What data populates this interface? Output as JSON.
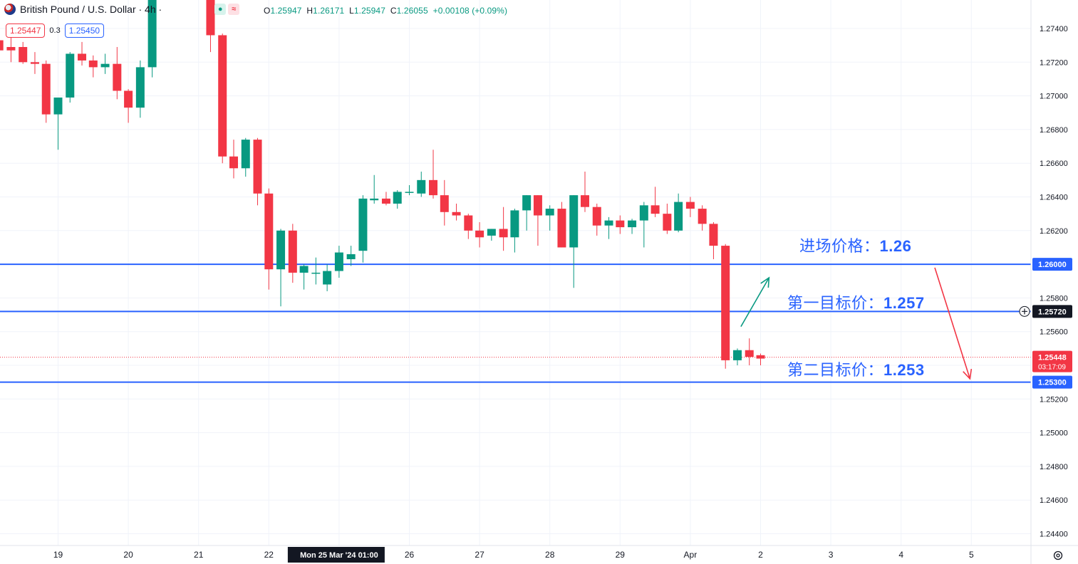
{
  "header": {
    "symbol_title": "British Pound / U.S. Dollar · 4h ·",
    "ohlc": {
      "open_label": "O",
      "open": "1.25947",
      "high_label": "H",
      "high": "1.26171",
      "low_label": "L",
      "low": "1.25947",
      "close_label": "C",
      "close": "1.26055",
      "change": "+0.00108 (+0.09%)"
    },
    "sell_price": "1.25447",
    "spread": "0.3",
    "buy_price": "1.25450"
  },
  "annotations": {
    "entry": {
      "label": "进场价格：",
      "value": "1.26"
    },
    "target1": {
      "label": "第一目标价：",
      "value": "1.257"
    },
    "target2": {
      "label": "第二目标价：",
      "value": "1.253"
    }
  },
  "colors": {
    "up": "#089981",
    "down": "#f23645",
    "line": "#2962ff",
    "grid": "#f0f3fa",
    "text": "#131722"
  },
  "chart_data": {
    "type": "candlestick",
    "title": "British Pound / U.S. Dollar",
    "timeframe": "4h",
    "ylim": [
      1.2435,
      1.2755
    ],
    "y_ticks": [
      "1.27400",
      "1.27200",
      "1.27000",
      "1.26800",
      "1.26600",
      "1.26400",
      "1.26200",
      "1.26000",
      "1.25800",
      "1.25600",
      "1.25400",
      "1.25200",
      "1.25000",
      "1.24800",
      "1.24600",
      "1.24400"
    ],
    "x_labels": [
      "19",
      "20",
      "21",
      "22",
      "Mon 25 Mar '24  01:00",
      "26",
      "27",
      "28",
      "29",
      "Apr",
      "2",
      "3",
      "4",
      "5"
    ],
    "x_label_days": [
      1,
      2,
      3,
      4,
      5,
      6,
      7,
      8,
      9,
      10,
      11,
      12,
      13,
      14
    ],
    "horizontal_lines": [
      {
        "price": 1.26,
        "label": "1.26000",
        "highlight": false
      },
      {
        "price": 1.2572,
        "label": "1.25720",
        "highlight": true
      },
      {
        "price": 1.253,
        "label": "1.25300",
        "highlight": false
      }
    ],
    "current_price": {
      "price": 1.25448,
      "label": "1.25448",
      "countdown": "03:17:09"
    },
    "arrows": [
      {
        "from": {
          "day": 10.72,
          "price": 1.2563
        },
        "to": {
          "day": 11.12,
          "price": 1.2592
        },
        "color": "#089981"
      },
      {
        "from": {
          "day": 13.48,
          "price": 1.2598
        },
        "to": {
          "day": 13.98,
          "price": 1.2532
        },
        "color": "#f23645"
      }
    ],
    "candles": [
      {
        "day": -0.18,
        "o": 1.2735,
        "h": 1.2755,
        "l": 1.2732,
        "c": 1.2752
      },
      {
        "day": -0.01,
        "o": 1.2732,
        "h": 1.274,
        "l": 1.2725,
        "c": 1.2728
      },
      {
        "day": 0.16,
        "o": 1.2733,
        "h": 1.274,
        "l": 1.2723,
        "c": 1.2727
      },
      {
        "day": 0.33,
        "o": 1.2729,
        "h": 1.2735,
        "l": 1.272,
        "c": 1.2727
      },
      {
        "day": 0.5,
        "o": 1.2729,
        "h": 1.2732,
        "l": 1.2719,
        "c": 1.272
      },
      {
        "day": 0.67,
        "o": 1.272,
        "h": 1.2726,
        "l": 1.2713,
        "c": 1.2719
      },
      {
        "day": 0.83,
        "o": 1.2719,
        "h": 1.2721,
        "l": 1.2684,
        "c": 1.2689
      },
      {
        "day": 1.0,
        "o": 1.2689,
        "h": 1.2699,
        "l": 1.2668,
        "c": 1.2699
      },
      {
        "day": 1.17,
        "o": 1.2699,
        "h": 1.2726,
        "l": 1.2696,
        "c": 1.2725
      },
      {
        "day": 1.34,
        "o": 1.2725,
        "h": 1.2732,
        "l": 1.2718,
        "c": 1.2721
      },
      {
        "day": 1.5,
        "o": 1.2721,
        "h": 1.2724,
        "l": 1.2711,
        "c": 1.2717
      },
      {
        "day": 1.67,
        "o": 1.2717,
        "h": 1.2725,
        "l": 1.2713,
        "c": 1.2719
      },
      {
        "day": 1.84,
        "o": 1.2719,
        "h": 1.2729,
        "l": 1.2698,
        "c": 1.2703
      },
      {
        "day": 2.0,
        "o": 1.2703,
        "h": 1.2704,
        "l": 1.2684,
        "c": 1.2693
      },
      {
        "day": 2.17,
        "o": 1.2693,
        "h": 1.2721,
        "l": 1.2687,
        "c": 1.2717
      },
      {
        "day": 2.34,
        "o": 1.2717,
        "h": 1.2765,
        "l": 1.2711,
        "c": 1.276
      },
      {
        "day": 3.17,
        "o": 1.276,
        "h": 1.2762,
        "l": 1.2726,
        "c": 1.2736
      },
      {
        "day": 3.34,
        "o": 1.2736,
        "h": 1.2737,
        "l": 1.266,
        "c": 1.2664
      },
      {
        "day": 3.5,
        "o": 1.2664,
        "h": 1.2674,
        "l": 1.2651,
        "c": 1.2657
      },
      {
        "day": 3.67,
        "o": 1.2657,
        "h": 1.2675,
        "l": 1.2652,
        "c": 1.2674
      },
      {
        "day": 3.84,
        "o": 1.2674,
        "h": 1.2675,
        "l": 1.2635,
        "c": 1.2642
      },
      {
        "day": 4.0,
        "o": 1.2642,
        "h": 1.2645,
        "l": 1.2585,
        "c": 1.2597
      },
      {
        "day": 4.17,
        "o": 1.2597,
        "h": 1.2621,
        "l": 1.2575,
        "c": 1.262
      },
      {
        "day": 4.34,
        "o": 1.262,
        "h": 1.2624,
        "l": 1.2589,
        "c": 1.2595
      },
      {
        "day": 4.5,
        "o": 1.2595,
        "h": 1.26,
        "l": 1.2585,
        "c": 1.2599
      },
      {
        "day": 4.67,
        "o": 1.2595,
        "h": 1.2604,
        "l": 1.2588,
        "c": 1.2595
      },
      {
        "day": 4.83,
        "o": 1.2588,
        "h": 1.26,
        "l": 1.2584,
        "c": 1.2596
      },
      {
        "day": 5.0,
        "o": 1.2596,
        "h": 1.2611,
        "l": 1.2592,
        "c": 1.2607
      },
      {
        "day": 5.17,
        "o": 1.2603,
        "h": 1.2611,
        "l": 1.2599,
        "c": 1.2606
      },
      {
        "day": 5.34,
        "o": 1.2608,
        "h": 1.2641,
        "l": 1.2601,
        "c": 1.2639
      },
      {
        "day": 5.5,
        "o": 1.2638,
        "h": 1.2653,
        "l": 1.2636,
        "c": 1.2639
      },
      {
        "day": 5.67,
        "o": 1.2639,
        "h": 1.2643,
        "l": 1.2635,
        "c": 1.2636
      },
      {
        "day": 5.83,
        "o": 1.2636,
        "h": 1.2644,
        "l": 1.2633,
        "c": 1.2643
      },
      {
        "day": 6.0,
        "o": 1.2643,
        "h": 1.2647,
        "l": 1.2641,
        "c": 1.2643
      },
      {
        "day": 6.17,
        "o": 1.2642,
        "h": 1.2655,
        "l": 1.264,
        "c": 1.265
      },
      {
        "day": 6.34,
        "o": 1.265,
        "h": 1.2668,
        "l": 1.2639,
        "c": 1.2641
      },
      {
        "day": 6.5,
        "o": 1.2641,
        "h": 1.265,
        "l": 1.2623,
        "c": 1.2631
      },
      {
        "day": 6.67,
        "o": 1.2631,
        "h": 1.2636,
        "l": 1.2626,
        "c": 1.2629
      },
      {
        "day": 6.84,
        "o": 1.2629,
        "h": 1.263,
        "l": 1.2615,
        "c": 1.262
      },
      {
        "day": 7.0,
        "o": 1.262,
        "h": 1.2625,
        "l": 1.261,
        "c": 1.2616
      },
      {
        "day": 7.17,
        "o": 1.2617,
        "h": 1.2621,
        "l": 1.2614,
        "c": 1.2621
      },
      {
        "day": 7.34,
        "o": 1.2621,
        "h": 1.2634,
        "l": 1.2608,
        "c": 1.2616
      },
      {
        "day": 7.5,
        "o": 1.2616,
        "h": 1.2633,
        "l": 1.2607,
        "c": 1.2632
      },
      {
        "day": 7.67,
        "o": 1.2632,
        "h": 1.2641,
        "l": 1.262,
        "c": 1.2641
      },
      {
        "day": 7.83,
        "o": 1.2641,
        "h": 1.2641,
        "l": 1.2611,
        "c": 1.2629
      },
      {
        "day": 8.0,
        "o": 1.2629,
        "h": 1.2635,
        "l": 1.262,
        "c": 1.2633
      },
      {
        "day": 8.17,
        "o": 1.2633,
        "h": 1.2637,
        "l": 1.261,
        "c": 1.261
      },
      {
        "day": 8.34,
        "o": 1.261,
        "h": 1.2641,
        "l": 1.2586,
        "c": 1.2641
      },
      {
        "day": 8.5,
        "o": 1.2641,
        "h": 1.2655,
        "l": 1.2631,
        "c": 1.2634
      },
      {
        "day": 8.67,
        "o": 1.2634,
        "h": 1.2636,
        "l": 1.2617,
        "c": 1.2623
      },
      {
        "day": 8.84,
        "o": 1.2623,
        "h": 1.2628,
        "l": 1.2615,
        "c": 1.2626
      },
      {
        "day": 9.0,
        "o": 1.2626,
        "h": 1.2629,
        "l": 1.2618,
        "c": 1.2622
      },
      {
        "day": 9.17,
        "o": 1.2622,
        "h": 1.2627,
        "l": 1.2618,
        "c": 1.2626
      },
      {
        "day": 9.34,
        "o": 1.2626,
        "h": 1.2637,
        "l": 1.261,
        "c": 1.2635
      },
      {
        "day": 9.5,
        "o": 1.2635,
        "h": 1.2646,
        "l": 1.2628,
        "c": 1.263
      },
      {
        "day": 9.67,
        "o": 1.263,
        "h": 1.2636,
        "l": 1.2618,
        "c": 1.262
      },
      {
        "day": 9.83,
        "o": 1.262,
        "h": 1.2642,
        "l": 1.2619,
        "c": 1.2637
      },
      {
        "day": 10.0,
        "o": 1.2637,
        "h": 1.264,
        "l": 1.2628,
        "c": 1.2633
      },
      {
        "day": 10.17,
        "o": 1.2633,
        "h": 1.2635,
        "l": 1.262,
        "c": 1.2624
      },
      {
        "day": 10.33,
        "o": 1.2624,
        "h": 1.2625,
        "l": 1.2603,
        "c": 1.2611
      },
      {
        "day": 10.5,
        "o": 1.2611,
        "h": 1.2612,
        "l": 1.2538,
        "c": 1.2543
      },
      {
        "day": 10.67,
        "o": 1.2543,
        "h": 1.255,
        "l": 1.254,
        "c": 1.2549
      },
      {
        "day": 10.84,
        "o": 1.2549,
        "h": 1.2556,
        "l": 1.254,
        "c": 1.2545
      },
      {
        "day": 11.0,
        "o": 1.2546,
        "h": 1.2547,
        "l": 1.254,
        "c": 1.2544
      }
    ]
  }
}
